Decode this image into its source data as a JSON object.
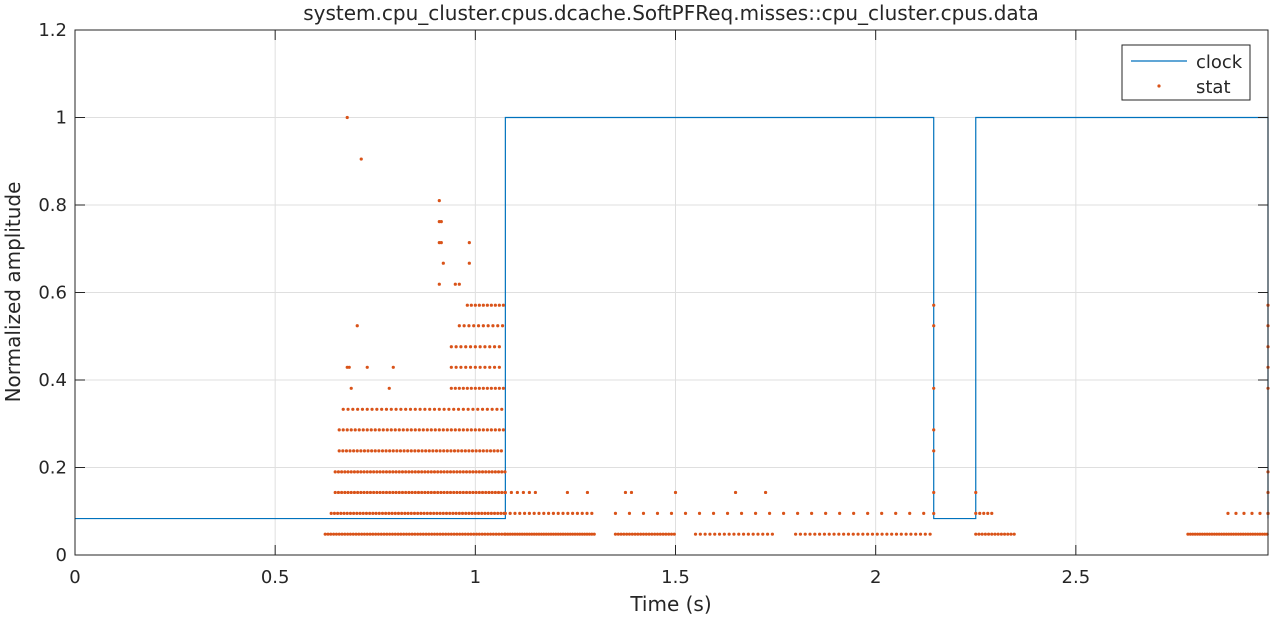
{
  "chart_data": {
    "type": "line+scatter",
    "title": "system.cpu_cluster.cpus.dcache.SoftPFReq.misses::cpu_cluster.cpus.data",
    "xlabel": "Time (s)",
    "ylabel": "Normalized amplitude",
    "xlim": [
      0,
      2.98
    ],
    "ylim": [
      0,
      1.2
    ],
    "xticks": [
      0,
      0.5,
      1,
      1.5,
      2,
      2.5
    ],
    "xtick_labels": [
      "0",
      "0.5",
      "1",
      "1.5",
      "2",
      "2.5"
    ],
    "yticks": [
      0,
      0.2,
      0.4,
      0.6,
      0.8,
      1,
      1.2
    ],
    "ytick_labels": [
      "0",
      "0.2",
      "0.4",
      "0.6",
      "0.8",
      "1",
      "1.2"
    ],
    "grid": true,
    "legend": {
      "placement": "top-right",
      "entries": [
        "clock",
        "stat"
      ]
    },
    "colors": {
      "clock": "#0072BD",
      "stat": "#D95319",
      "grid": "#dfdfdf",
      "axis": "#262626"
    },
    "series": [
      {
        "name": "clock",
        "kind": "step",
        "low": 0.0833,
        "high": 1.0,
        "segments": [
          [
            0,
            1.075,
            0.0833
          ],
          [
            1.075,
            2.145,
            1.0
          ],
          [
            2.145,
            2.25,
            0.0833
          ],
          [
            2.25,
            2.98,
            1.0
          ],
          [
            2.98,
            2.98,
            0.0833
          ]
        ]
      },
      {
        "name": "stat",
        "kind": "scatter",
        "points": [
          [
            0.68,
            1.0
          ],
          [
            0.715,
            0.905
          ],
          [
            0.91,
            0.81
          ],
          [
            0.91,
            0.762
          ],
          [
            0.915,
            0.762
          ],
          [
            0.91,
            0.714
          ],
          [
            0.915,
            0.714
          ],
          [
            0.985,
            0.714
          ],
          [
            0.92,
            0.667
          ],
          [
            0.985,
            0.667
          ],
          [
            0.705,
            0.524
          ],
          [
            0.68,
            0.429
          ],
          [
            0.685,
            0.429
          ],
          [
            0.73,
            0.429
          ],
          [
            0.795,
            0.429
          ],
          [
            0.69,
            0.381
          ],
          [
            0.785,
            0.381
          ],
          [
            0.91,
            0.619
          ],
          [
            0.95,
            0.619
          ],
          [
            0.96,
            0.619
          ],
          [
            2.145,
            0.571
          ],
          [
            2.145,
            0.524
          ],
          [
            2.145,
            0.381
          ],
          [
            2.145,
            0.286
          ],
          [
            2.145,
            0.238
          ],
          [
            2.145,
            0.143
          ],
          [
            2.145,
            0.095
          ],
          [
            2.25,
            0.143
          ],
          [
            2.98,
            0.571
          ],
          [
            2.98,
            0.524
          ],
          [
            2.98,
            0.476
          ],
          [
            2.98,
            0.429
          ],
          [
            2.98,
            0.381
          ],
          [
            2.98,
            0.19
          ],
          [
            2.98,
            0.143
          ],
          [
            2.98,
            0.095
          ],
          [
            1.23,
            0.143
          ],
          [
            1.28,
            0.143
          ],
          [
            1.375,
            0.143
          ],
          [
            1.39,
            0.143
          ],
          [
            1.5,
            0.143
          ],
          [
            1.65,
            0.143
          ],
          [
            1.725,
            0.143
          ]
        ],
        "generated_clusters": [
          {
            "x_range": [
              0.625,
              1.075
            ],
            "x_step": 0.007,
            "y": 0.0476
          },
          {
            "x_range": [
              0.64,
              1.075
            ],
            "x_step": 0.008,
            "y": 0.0952
          },
          {
            "x_range": [
              0.65,
              1.075
            ],
            "x_step": 0.008,
            "y": 0.143
          },
          {
            "x_range": [
              0.65,
              1.075
            ],
            "x_step": 0.008,
            "y": 0.19
          },
          {
            "x_range": [
              0.66,
              1.07
            ],
            "x_step": 0.009,
            "y": 0.238
          },
          {
            "x_range": [
              0.66,
              1.07
            ],
            "x_step": 0.01,
            "y": 0.286
          },
          {
            "x_range": [
              0.67,
              1.07
            ],
            "x_step": 0.012,
            "y": 0.333
          },
          {
            "x_range": [
              0.94,
              1.07
            ],
            "x_step": 0.01,
            "y": 0.381
          },
          {
            "x_range": [
              0.94,
              1.07
            ],
            "x_step": 0.012,
            "y": 0.429
          },
          {
            "x_range": [
              0.94,
              1.07
            ],
            "x_step": 0.012,
            "y": 0.476
          },
          {
            "x_range": [
              0.96,
              1.07
            ],
            "x_step": 0.012,
            "y": 0.524
          },
          {
            "x_range": [
              0.98,
              1.07
            ],
            "x_step": 0.01,
            "y": 0.571
          },
          {
            "x_range": [
              1.075,
              1.3
            ],
            "x_step": 0.006,
            "y": 0.0476
          },
          {
            "x_range": [
              1.075,
              1.3
            ],
            "x_step": 0.012,
            "y": 0.0952
          },
          {
            "x_range": [
              1.075,
              1.15
            ],
            "x_step": 0.015,
            "y": 0.143
          },
          {
            "x_range": [
              1.35,
              1.5
            ],
            "x_step": 0.007,
            "y": 0.0476
          },
          {
            "x_range": [
              1.35,
              2.14
            ],
            "x_step": 0.035,
            "y": 0.0952
          },
          {
            "x_range": [
              1.55,
              1.75
            ],
            "x_step": 0.012,
            "y": 0.0476
          },
          {
            "x_range": [
              1.8,
              2.14
            ],
            "x_step": 0.012,
            "y": 0.0476
          },
          {
            "x_range": [
              2.25,
              2.35
            ],
            "x_step": 0.008,
            "y": 0.0476
          },
          {
            "x_range": [
              2.25,
              2.29
            ],
            "x_step": 0.01,
            "y": 0.0952
          },
          {
            "x_range": [
              2.78,
              2.98
            ],
            "x_step": 0.006,
            "y": 0.0476
          },
          {
            "x_range": [
              2.88,
              2.98
            ],
            "x_step": 0.02,
            "y": 0.0952
          }
        ]
      }
    ]
  }
}
